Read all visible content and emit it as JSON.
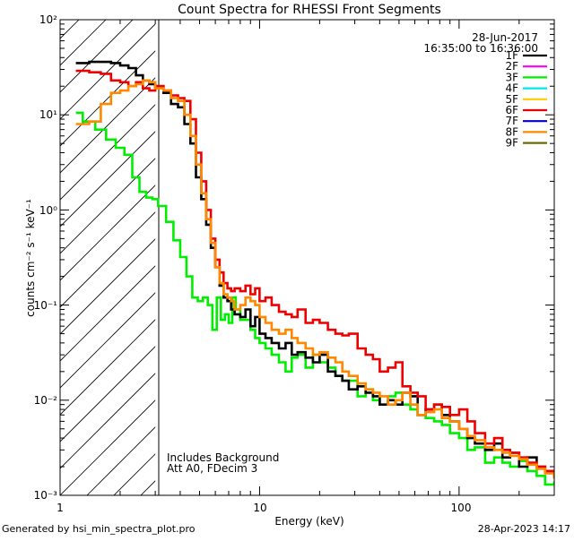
{
  "chart_data": {
    "type": "line",
    "title": "Count Spectra for RHESSI Front Segments",
    "xlabel": "Energy (keV)",
    "ylabel": "counts cm⁻² s⁻¹ keV⁻¹",
    "xscale": "log",
    "yscale": "log",
    "xlim": [
      1,
      300
    ],
    "ylim": [
      0.001,
      100
    ],
    "x_major_ticks": [
      1,
      10,
      100
    ],
    "x_major_labels": [
      "1",
      "10",
      "100"
    ],
    "y_major_ticks": [
      0.001,
      0.01,
      0.1,
      1,
      10,
      100
    ],
    "y_major_labels": [
      "10⁻³",
      "10⁻²",
      "10⁻¹",
      "10⁰",
      "10¹",
      "10²"
    ],
    "date": "28-Jun-2017",
    "time_range": "16:35:00 to 16:36:00",
    "annotations": [
      "Includes Background",
      "Att A0, FDecim 3"
    ],
    "footer_left": "Generated by hsi_min_spectra_plot.pro",
    "footer_right": "28-Apr-2023 14:17",
    "hatched_region": {
      "x_from": 1,
      "x_to": 3
    },
    "legend": [
      {
        "label": "1F",
        "color": "#000000"
      },
      {
        "label": "2F",
        "color": "#ff00ff"
      },
      {
        "label": "3F",
        "color": "#00ee00"
      },
      {
        "label": "4F",
        "color": "#00e5ee"
      },
      {
        "label": "5F",
        "color": "#ffcc00"
      },
      {
        "label": "6F",
        "color": "#ee0000"
      },
      {
        "label": "7F",
        "color": "#0000cc"
      },
      {
        "label": "8F",
        "color": "#ff8800"
      },
      {
        "label": "9F",
        "color": "#6b6b00"
      }
    ],
    "series": [
      {
        "name": "3F",
        "color": "#00ee00",
        "x": [
          1.2,
          1.3,
          1.5,
          1.7,
          1.9,
          2.1,
          2.3,
          2.5,
          2.7,
          2.9,
          3.1,
          3.4,
          3.7,
          4.0,
          4.3,
          4.6,
          4.9,
          5.2,
          5.5,
          5.8,
          6.1,
          6.4,
          6.7,
          7.0,
          7.3,
          7.6,
          8.0,
          8.5,
          9.0,
          9.5,
          10.0,
          10.7,
          11.5,
          12.5,
          13.5,
          14.5,
          15.5,
          17.0,
          18.5,
          20.0,
          22.0,
          24.0,
          26.0,
          28.0,
          31.0,
          34.0,
          37.0,
          40.0,
          44.0,
          48.0,
          52.0,
          57.0,
          62.0,
          68.0,
          75.0,
          82.0,
          90.0,
          100.0,
          110.0,
          120.0,
          135.0,
          150.0,
          165.0,
          180.0,
          200.0,
          220.0,
          245.0,
          270.0,
          300.0
        ],
        "values": [
          10.5,
          8.5,
          7.0,
          5.5,
          4.5,
          3.8,
          2.2,
          1.55,
          1.35,
          1.3,
          1.1,
          0.75,
          0.48,
          0.32,
          0.2,
          0.12,
          0.11,
          0.12,
          0.1,
          0.055,
          0.12,
          0.07,
          0.08,
          0.065,
          0.12,
          0.09,
          0.07,
          0.07,
          0.055,
          0.045,
          0.04,
          0.035,
          0.03,
          0.025,
          0.02,
          0.028,
          0.03,
          0.022,
          0.03,
          0.025,
          0.022,
          0.018,
          0.016,
          0.016,
          0.011,
          0.013,
          0.01,
          0.009,
          0.011,
          0.012,
          0.009,
          0.008,
          0.007,
          0.0065,
          0.006,
          0.0055,
          0.0045,
          0.004,
          0.003,
          0.0032,
          0.0022,
          0.0025,
          0.0022,
          0.002,
          0.0023,
          0.0018,
          0.0016,
          0.0013,
          0.0014
        ]
      },
      {
        "name": "1F",
        "color": "#000000",
        "x": [
          1.2,
          1.4,
          1.6,
          1.8,
          2.0,
          2.2,
          2.4,
          2.6,
          2.8,
          3.0,
          3.3,
          3.6,
          3.9,
          4.2,
          4.5,
          4.8,
          5.1,
          5.4,
          5.7,
          6.0,
          6.3,
          6.6,
          6.9,
          7.2,
          7.5,
          8.0,
          8.5,
          9.0,
          9.5,
          10.0,
          10.7,
          11.5,
          12.5,
          13.5,
          14.5,
          15.5,
          17.0,
          18.5,
          20.0,
          22.0,
          24.0,
          26.0,
          28.0,
          31.0,
          34.0,
          37.0,
          40.0,
          44.0,
          48.0,
          52.0,
          57.0,
          62.0,
          68.0,
          75.0,
          82.0,
          90.0,
          100.0,
          110.0,
          120.0,
          135.0,
          150.0,
          165.0,
          180.0,
          200.0,
          220.0,
          245.0,
          270.0,
          300.0
        ],
        "values": [
          35,
          36,
          36,
          35,
          33,
          31,
          26,
          23,
          21,
          20,
          17,
          13,
          12,
          8,
          5,
          2.2,
          1.3,
          0.7,
          0.4,
          0.25,
          0.16,
          0.12,
          0.11,
          0.09,
          0.08,
          0.075,
          0.09,
          0.06,
          0.075,
          0.05,
          0.045,
          0.04,
          0.035,
          0.04,
          0.03,
          0.032,
          0.028,
          0.025,
          0.03,
          0.02,
          0.018,
          0.016,
          0.013,
          0.014,
          0.012,
          0.011,
          0.009,
          0.01,
          0.009,
          0.012,
          0.011,
          0.007,
          0.008,
          0.009,
          0.007,
          0.006,
          0.005,
          0.004,
          0.0035,
          0.003,
          0.0035,
          0.0025,
          0.0028,
          0.002,
          0.0025,
          0.002,
          0.0018,
          0.0016
        ]
      },
      {
        "name": "6F",
        "color": "#ee0000",
        "x": [
          1.2,
          1.4,
          1.6,
          1.8,
          2.0,
          2.2,
          2.4,
          2.6,
          2.8,
          3.0,
          3.3,
          3.6,
          3.9,
          4.2,
          4.5,
          4.8,
          5.1,
          5.4,
          5.7,
          6.0,
          6.3,
          6.6,
          6.9,
          7.2,
          7.5,
          8.0,
          8.5,
          9.0,
          9.5,
          10.0,
          10.7,
          11.5,
          12.5,
          13.5,
          14.5,
          15.5,
          17.0,
          18.5,
          20.0,
          22.0,
          24.0,
          26.0,
          28.0,
          31.0,
          34.0,
          37.0,
          40.0,
          44.0,
          48.0,
          52.0,
          57.0,
          62.0,
          68.0,
          75.0,
          82.0,
          90.0,
          100.0,
          110.0,
          120.0,
          135.0,
          150.0,
          165.0,
          180.0,
          200.0,
          220.0,
          245.0,
          270.0,
          300.0
        ],
        "values": [
          29,
          28,
          27,
          23,
          22,
          20,
          22,
          19,
          18,
          20,
          18,
          16,
          15,
          14,
          9,
          4,
          2.0,
          1.0,
          0.5,
          0.3,
          0.22,
          0.17,
          0.15,
          0.14,
          0.15,
          0.14,
          0.16,
          0.13,
          0.15,
          0.11,
          0.12,
          0.1,
          0.085,
          0.08,
          0.075,
          0.09,
          0.065,
          0.07,
          0.065,
          0.055,
          0.05,
          0.048,
          0.05,
          0.035,
          0.03,
          0.027,
          0.02,
          0.022,
          0.025,
          0.014,
          0.012,
          0.011,
          0.008,
          0.009,
          0.0085,
          0.007,
          0.008,
          0.006,
          0.0045,
          0.0035,
          0.004,
          0.003,
          0.0028,
          0.0025,
          0.0022,
          0.002,
          0.0018,
          0.0015
        ]
      },
      {
        "name": "8F",
        "color": "#ff8800",
        "x": [
          1.2,
          1.4,
          1.6,
          1.8,
          2.0,
          2.2,
          2.4,
          2.6,
          2.8,
          3.0,
          3.3,
          3.6,
          3.9,
          4.2,
          4.5,
          4.8,
          5.1,
          5.4,
          5.7,
          6.0,
          6.3,
          6.6,
          6.9,
          7.2,
          7.5,
          8.0,
          8.5,
          9.0,
          9.5,
          10.0,
          10.7,
          11.5,
          12.5,
          13.5,
          14.5,
          15.5,
          17.0,
          18.5,
          20.0,
          22.0,
          24.0,
          26.0,
          28.0,
          31.0,
          34.0,
          37.0,
          40.0,
          44.0,
          48.0,
          52.0,
          57.0,
          62.0,
          68.0,
          75.0,
          82.0,
          90.0,
          100.0,
          110.0,
          120.0,
          135.0,
          150.0,
          165.0,
          180.0,
          200.0,
          220.0,
          245.0,
          270.0,
          300.0
        ],
        "values": [
          8,
          8.5,
          13,
          17,
          18,
          20,
          21,
          23,
          22,
          19,
          18,
          15,
          14,
          10,
          6,
          3.0,
          1.5,
          0.8,
          0.45,
          0.25,
          0.17,
          0.13,
          0.12,
          0.11,
          0.09,
          0.1,
          0.12,
          0.11,
          0.1,
          0.075,
          0.065,
          0.055,
          0.05,
          0.055,
          0.045,
          0.04,
          0.035,
          0.03,
          0.032,
          0.028,
          0.025,
          0.02,
          0.018,
          0.015,
          0.013,
          0.012,
          0.011,
          0.009,
          0.01,
          0.012,
          0.009,
          0.007,
          0.0075,
          0.008,
          0.0065,
          0.006,
          0.005,
          0.0042,
          0.0038,
          0.0032,
          0.003,
          0.0028,
          0.0026,
          0.0024,
          0.0021,
          0.0019,
          0.0017,
          0.0015
        ]
      }
    ]
  }
}
